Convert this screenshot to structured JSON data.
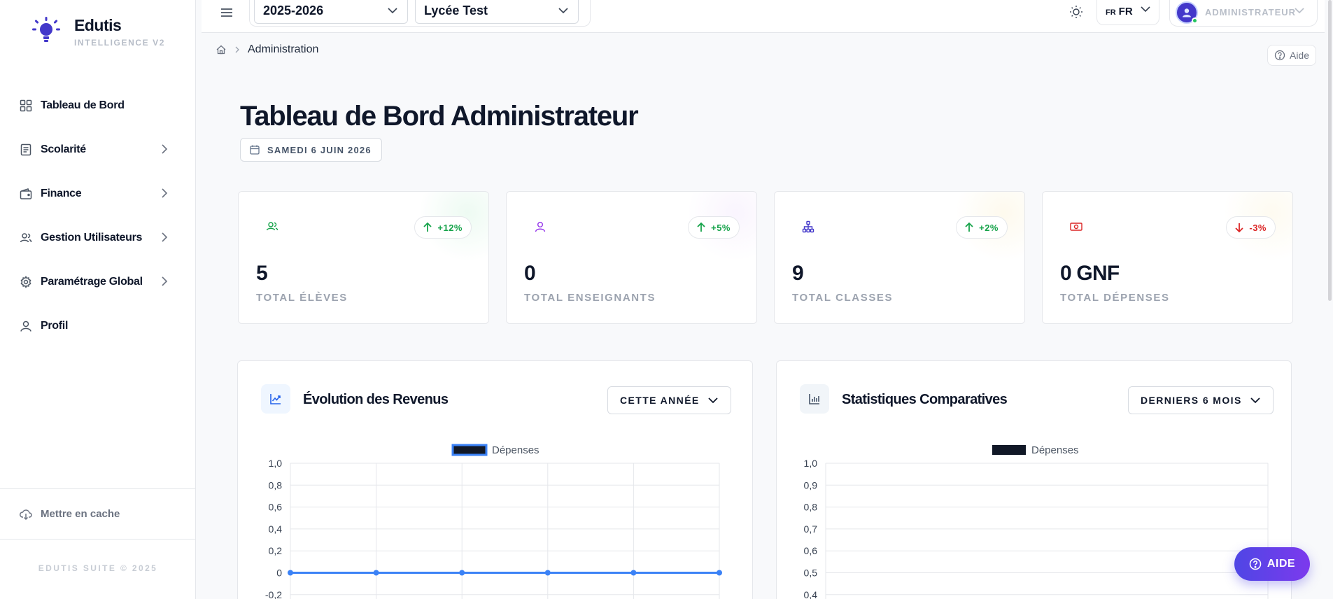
{
  "brand": {
    "name": "Edutis",
    "subtitle": "INTELLIGENCE V2"
  },
  "sidebar": {
    "items": [
      {
        "label": "Tableau de Bord",
        "icon": "grid-icon"
      },
      {
        "label": "Scolarité",
        "icon": "document-icon"
      },
      {
        "label": "Finance",
        "icon": "wallet-icon"
      },
      {
        "label": "Gestion Utilisateurs",
        "icon": "users-icon"
      },
      {
        "label": "Paramétrage Global",
        "icon": "gear-icon"
      },
      {
        "label": "Profil",
        "icon": "user-icon"
      }
    ],
    "cache_label": "Mettre en cache",
    "footer": "EDUTIS SUITE © 2025"
  },
  "topbar": {
    "year": "2025-2026",
    "school": "Lycée Test",
    "lang_small": "FR",
    "lang": "FR",
    "role": "ADMINISTRATEUR"
  },
  "breadcrumb": {
    "current": "Administration"
  },
  "help_label": "Aide",
  "page": {
    "title": "Tableau de Bord Administrateur",
    "date": "SAMEDI 6 JUIN 2026"
  },
  "stats": [
    {
      "value": "5",
      "label": "TOTAL ÉLÈVES",
      "trend": "+12%",
      "direction": "up",
      "color": "#16a34a",
      "icon": "users-icon"
    },
    {
      "value": "0",
      "label": "TOTAL ENSEIGNANTS",
      "trend": "+5%",
      "direction": "up",
      "color": "#9333ea",
      "icon": "user-icon"
    },
    {
      "value": "9",
      "label": "TOTAL CLASSES",
      "trend": "+2%",
      "direction": "up",
      "color": "#4338ca",
      "icon": "hierarchy-icon"
    },
    {
      "value": "0 GNF",
      "label": "TOTAL DÉPENSES",
      "trend": "-3%",
      "direction": "down",
      "color": "#dc2626",
      "icon": "banknote-icon"
    }
  ],
  "charts": {
    "revenue": {
      "title": "Évolution des Revenus",
      "period": "CETTE ANNÉE"
    },
    "comparative": {
      "title": "Statistiques Comparatives",
      "period": "DERNIERS 6 MOIS"
    }
  },
  "chart_data": [
    {
      "type": "line",
      "title": "",
      "series": [
        {
          "name": "Dépenses",
          "values": [
            0,
            0,
            0,
            0,
            0,
            0
          ]
        }
      ],
      "y_ticks": [
        "1,0",
        "0,8",
        "0,6",
        "0,4",
        "0,2",
        "0",
        "-0,2"
      ],
      "ylim": [
        -0.2,
        1.0
      ],
      "legend": "top-center",
      "grid": true,
      "color": "#3b82f6"
    },
    {
      "type": "bar",
      "title": "",
      "series": [
        {
          "name": "Dépenses",
          "values": []
        }
      ],
      "y_ticks": [
        "1,0",
        "0,9",
        "0,8",
        "0,7",
        "0,6",
        "0,5",
        "0,4"
      ],
      "ylim": [
        0.4,
        1.0
      ],
      "legend": "top-center",
      "grid": true,
      "color": "#111827"
    }
  ],
  "fab_label": "AIDE",
  "colors": {
    "accent": "#4f46e5",
    "sidebar_bg": "#ffffff",
    "page_bg": "#f8f9fb"
  }
}
